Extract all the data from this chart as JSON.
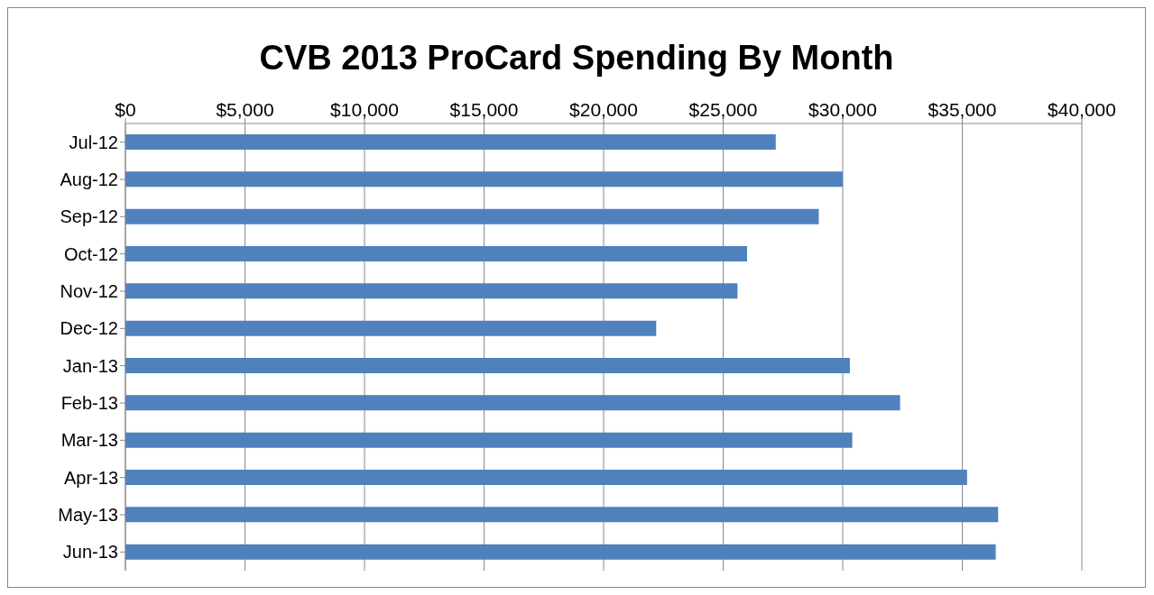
{
  "chart_data": {
    "type": "bar",
    "orientation": "horizontal",
    "title": "CVB 2013 ProCard Spending By Month",
    "categories": [
      "Jul-12",
      "Aug-12",
      "Sep-12",
      "Oct-12",
      "Nov-12",
      "Dec-12",
      "Jan-13",
      "Feb-13",
      "Mar-13",
      "Apr-13",
      "May-13",
      "Jun-13"
    ],
    "values": [
      27200,
      30000,
      29000,
      26000,
      25600,
      22200,
      30300,
      32400,
      30400,
      35200,
      36500,
      36400
    ],
    "color": "#4f81bd",
    "xlim": [
      0,
      40000
    ],
    "xticks": [
      {
        "value": 0,
        "label": "$0"
      },
      {
        "value": 5000,
        "label": "$5,000"
      },
      {
        "value": 10000,
        "label": "$10,000"
      },
      {
        "value": 15000,
        "label": "$15,000"
      },
      {
        "value": 20000,
        "label": "$20,000"
      },
      {
        "value": 25000,
        "label": "$25,000"
      },
      {
        "value": 30000,
        "label": "$30,000"
      },
      {
        "value": 35000,
        "label": "$35,000"
      },
      {
        "value": 40000,
        "label": "$40,000"
      }
    ],
    "grid": "x"
  }
}
